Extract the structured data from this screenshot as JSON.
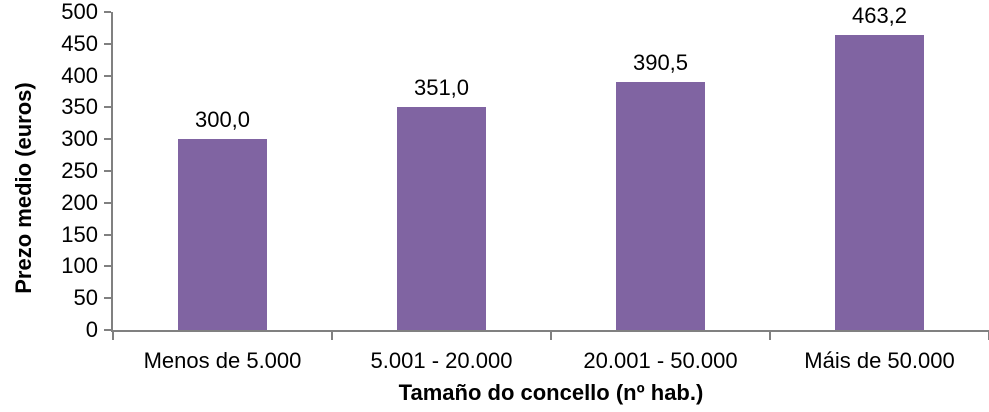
{
  "chart_data": {
    "type": "bar",
    "title": "",
    "xlabel": "Tamaño do concello (nº hab.)",
    "ylabel": "Prezo medio (euros)",
    "categories": [
      "Menos de 5.000",
      "5.001 - 20.000",
      "20.001 - 50.000",
      "Máis de 50.000"
    ],
    "values": [
      300.0,
      351.0,
      390.5,
      463.2
    ],
    "value_labels": [
      "300,0",
      "351,0",
      "390,5",
      "463,2"
    ],
    "ylim": [
      0,
      500
    ],
    "ytick_step": 50,
    "yticks": [
      0,
      50,
      100,
      150,
      200,
      250,
      300,
      350,
      400,
      450,
      500
    ],
    "grid": false,
    "legend": null,
    "bar_color": "#8064A2",
    "axis_color": "#808080",
    "text_color": "#000000"
  }
}
